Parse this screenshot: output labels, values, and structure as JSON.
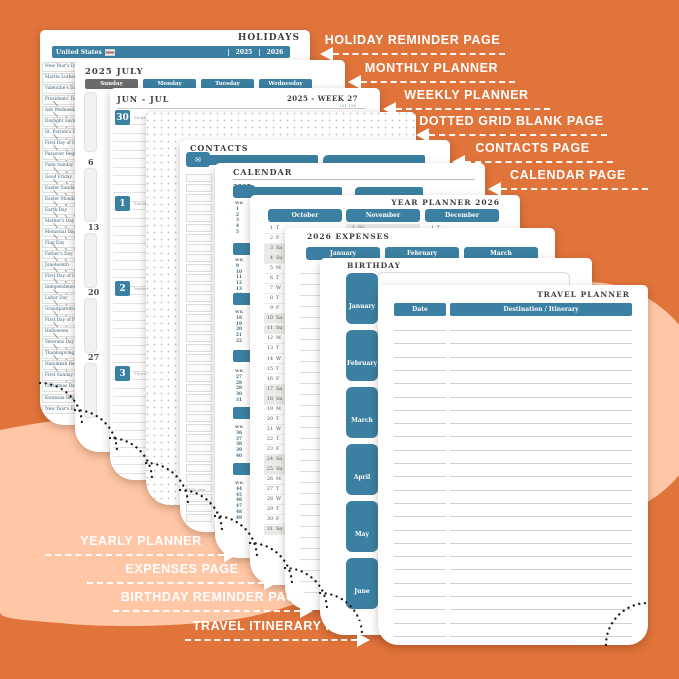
{
  "colors": {
    "background_orange": "#E0743A",
    "background_peach": "#FFC7A6",
    "accent_teal": "#3B80A2",
    "sunday_gray": "#6B6B6B"
  },
  "labels": {
    "right": [
      "HOLIDAY REMINDER PAGE",
      "MONTHLY PLANNER",
      "WEEKLY PLANNER",
      "DOTTED GRID BLANK PAGE",
      "CONTACTS PAGE",
      "CALENDAR PAGE"
    ],
    "bottom": [
      "YEARLY PLANNER",
      "EXPENSES PAGE",
      "BIRTHDAY REMINDER PAGE",
      "TRAVEL ITINERARY PAGE"
    ]
  },
  "pages": {
    "holidays": {
      "title": "HOLIDAYS",
      "country": "United States",
      "years": [
        "2025",
        "2026"
      ],
      "holiday_names": [
        "New Year's Day",
        "Martin Luther King Jr. Day",
        "Valentine's Day",
        "Presidents' Day",
        "Ash Wednesday",
        "Daylight Saving Begins",
        "St. Patrick's Day",
        "First Day of Spring",
        "Passover Begins",
        "Palm Sunday",
        "Good Friday",
        "Easter Sunday",
        "Easter Monday",
        "Earth Day",
        "Mother's Day",
        "Memorial Day",
        "Flag Day",
        "Father's Day",
        "Juneteenth",
        "First Day of Summer",
        "Independence Day",
        "Labor Day",
        "Grandparents' Day",
        "First Day of Fall",
        "Halloween",
        "Veterans Day",
        "Thanksgiving Day",
        "Hanukkah Begins",
        "First Sunday of Advent",
        "Christmas Day",
        "Kwanzaa Begins",
        "New Year's Eve"
      ]
    },
    "monthly": {
      "title": "2025 JULY",
      "day_headers": [
        "Sunday",
        "Monday",
        "Tuesday",
        "Wednesday"
      ],
      "week_numbers": [
        "6",
        "13",
        "20",
        "27"
      ]
    },
    "weekly": {
      "month_range": "JUN - JUL",
      "week_label": "2025 - WEEK 27",
      "page_range": "191-198",
      "days": [
        {
          "date": "30",
          "day": "Monday"
        },
        {
          "date": "1",
          "day": "Tuesday"
        },
        {
          "date": "2",
          "day": "Wednesday"
        },
        {
          "date": "3",
          "day": "Thursday"
        }
      ]
    },
    "contacts": {
      "title": "CONTACTS",
      "envelope_icon": "✉",
      "footnote": "Whilst grea"
    },
    "calendar": {
      "title": "CALENDAR",
      "year": "2025",
      "wk_label": "WK",
      "week_groups": [
        [
          "1",
          "2",
          "3",
          "4",
          "5"
        ],
        [
          "9",
          "10",
          "11",
          "12",
          "13",
          "14"
        ],
        [
          "18",
          "19",
          "20",
          "21",
          "22"
        ],
        [
          "27",
          "28",
          "29",
          "30",
          "31"
        ],
        [
          "36",
          "37",
          "38",
          "39",
          "40"
        ],
        [
          "44",
          "45",
          "46",
          "47",
          "48",
          "49"
        ]
      ]
    },
    "year_planner": {
      "title": "YEAR PLANNER 2026",
      "months": [
        "October",
        "November",
        "December"
      ],
      "october_days": [
        [
          "1",
          "T"
        ],
        [
          "2",
          "F"
        ],
        [
          "3",
          "Sa"
        ],
        [
          "4",
          "Su"
        ],
        [
          "5",
          "M"
        ],
        [
          "6",
          "T"
        ],
        [
          "7",
          "W"
        ],
        [
          "8",
          "T"
        ],
        [
          "9",
          "F"
        ],
        [
          "10",
          "Sa"
        ],
        [
          "11",
          "Su"
        ],
        [
          "12",
          "M"
        ],
        [
          "13",
          "T"
        ],
        [
          "14",
          "W"
        ],
        [
          "15",
          "T"
        ],
        [
          "16",
          "F"
        ],
        [
          "17",
          "Sa"
        ],
        [
          "18",
          "Su"
        ],
        [
          "19",
          "M"
        ],
        [
          "20",
          "T"
        ],
        [
          "21",
          "W"
        ],
        [
          "22",
          "T"
        ],
        [
          "23",
          "F"
        ],
        [
          "24",
          "Sa"
        ],
        [
          "25",
          "Su"
        ],
        [
          "26",
          "M"
        ],
        [
          "27",
          "T"
        ],
        [
          "28",
          "W"
        ],
        [
          "29",
          "T"
        ],
        [
          "30",
          "F"
        ],
        [
          "31",
          "Sa"
        ]
      ],
      "november_first": [
        "1",
        "Su"
      ],
      "december_first": [
        "1",
        "T"
      ]
    },
    "expenses": {
      "title": "2026 EXPENSES",
      "months": [
        "January",
        "February",
        "March"
      ]
    },
    "birthday": {
      "title": "BIRTHDAY",
      "months": [
        "January",
        "February",
        "March",
        "April",
        "May",
        "June"
      ]
    },
    "travel": {
      "title": "TRAVEL PLANNER",
      "columns": [
        "Date",
        "Destination / Itinerary"
      ]
    }
  }
}
